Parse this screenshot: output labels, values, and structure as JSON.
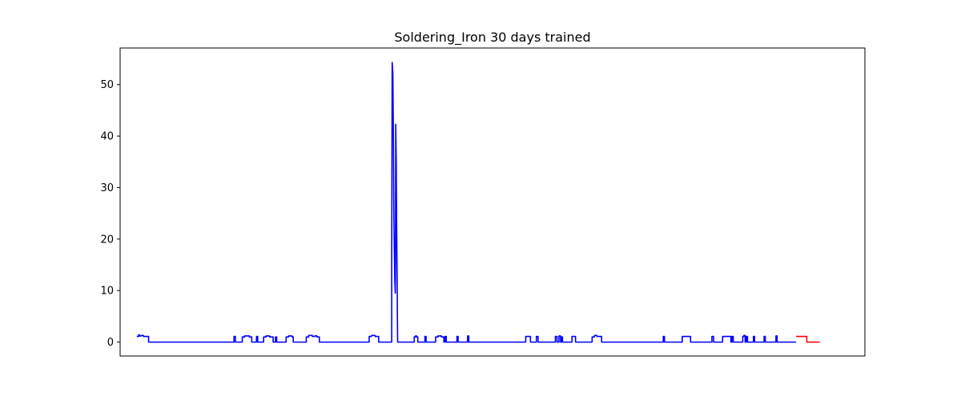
{
  "chart_data": {
    "type": "line",
    "title": "Soldering_Iron 30 days trained",
    "xlabel": "",
    "ylabel": "",
    "x_axis_labels_visible": false,
    "xlim": [
      -0.7,
      30.7
    ],
    "ylim": [
      -2.7,
      57.1
    ],
    "y_ticks": [
      0,
      10,
      20,
      30,
      40,
      50
    ],
    "grid": false,
    "series": [
      {
        "color": "#0000ff",
        "points": [
          [
            0,
            1.1
          ],
          [
            0.08,
            1.1
          ],
          [
            0.08,
            1.4
          ],
          [
            0.12,
            1.4
          ],
          [
            0.12,
            1.2
          ],
          [
            0.2,
            1.2
          ],
          [
            0.2,
            1.3
          ],
          [
            0.28,
            1.3
          ],
          [
            0.28,
            1.1
          ],
          [
            0.5,
            1.1
          ],
          [
            0.5,
            0
          ],
          [
            4.1,
            0
          ],
          [
            4.1,
            1.1
          ],
          [
            4.16,
            1.1
          ],
          [
            4.16,
            0
          ],
          [
            4.45,
            0
          ],
          [
            4.45,
            1.0
          ],
          [
            4.55,
            1.0
          ],
          [
            4.55,
            1.2
          ],
          [
            4.75,
            1.2
          ],
          [
            4.75,
            1.0
          ],
          [
            4.85,
            1.0
          ],
          [
            4.85,
            0
          ],
          [
            5.05,
            0
          ],
          [
            5.05,
            1.1
          ],
          [
            5.1,
            1.1
          ],
          [
            5.1,
            0
          ],
          [
            5.35,
            0
          ],
          [
            5.35,
            1.0
          ],
          [
            5.45,
            1.0
          ],
          [
            5.45,
            1.2
          ],
          [
            5.6,
            1.2
          ],
          [
            5.6,
            1.0
          ],
          [
            5.75,
            1.0
          ],
          [
            5.75,
            0
          ],
          [
            5.85,
            0
          ],
          [
            5.85,
            1.0
          ],
          [
            5.9,
            1.0
          ],
          [
            5.9,
            0
          ],
          [
            6.3,
            0
          ],
          [
            6.3,
            1.0
          ],
          [
            6.4,
            1.0
          ],
          [
            6.4,
            1.2
          ],
          [
            6.55,
            1.2
          ],
          [
            6.55,
            1.0
          ],
          [
            6.6,
            1.0
          ],
          [
            6.6,
            0
          ],
          [
            7.15,
            0
          ],
          [
            7.15,
            1.0
          ],
          [
            7.25,
            1.0
          ],
          [
            7.25,
            1.3
          ],
          [
            7.4,
            1.3
          ],
          [
            7.4,
            1.1
          ],
          [
            7.5,
            1.1
          ],
          [
            7.5,
            1.2
          ],
          [
            7.6,
            1.2
          ],
          [
            7.6,
            1.0
          ],
          [
            7.7,
            1.0
          ],
          [
            7.7,
            0
          ],
          [
            9.8,
            0
          ],
          [
            9.8,
            1.1
          ],
          [
            9.9,
            1.1
          ],
          [
            9.9,
            1.3
          ],
          [
            10.05,
            1.3
          ],
          [
            10.05,
            1.1
          ],
          [
            10.2,
            1.1
          ],
          [
            10.2,
            0
          ],
          [
            10.75,
            0
          ],
          [
            10.75,
            15
          ],
          [
            10.77,
            54.3
          ],
          [
            10.8,
            52
          ],
          [
            10.82,
            40
          ],
          [
            10.84,
            25
          ],
          [
            10.86,
            18
          ],
          [
            10.88,
            12
          ],
          [
            10.9,
            9.5
          ],
          [
            10.91,
            16
          ],
          [
            10.92,
            42.3
          ],
          [
            10.94,
            35
          ],
          [
            10.96,
            22
          ],
          [
            10.98,
            12
          ],
          [
            10.99,
            5
          ],
          [
            11.0,
            0
          ],
          [
            11.7,
            0
          ],
          [
            11.7,
            1.0
          ],
          [
            11.75,
            1.0
          ],
          [
            11.75,
            1.2
          ],
          [
            11.8,
            1.2
          ],
          [
            11.8,
            1.0
          ],
          [
            11.85,
            1.0
          ],
          [
            11.85,
            0
          ],
          [
            12.15,
            0
          ],
          [
            12.15,
            1.1
          ],
          [
            12.2,
            1.1
          ],
          [
            12.2,
            0
          ],
          [
            12.6,
            0
          ],
          [
            12.6,
            1.0
          ],
          [
            12.7,
            1.0
          ],
          [
            12.7,
            1.2
          ],
          [
            12.85,
            1.2
          ],
          [
            12.85,
            1.0
          ],
          [
            12.95,
            1.0
          ],
          [
            12.95,
            0
          ],
          [
            13.0,
            0
          ],
          [
            13.0,
            1.1
          ],
          [
            13.05,
            1.1
          ],
          [
            13.05,
            0
          ],
          [
            13.5,
            0
          ],
          [
            13.5,
            1.1
          ],
          [
            13.55,
            1.1
          ],
          [
            13.55,
            0
          ],
          [
            13.95,
            0
          ],
          [
            13.95,
            1.2
          ],
          [
            14.0,
            1.2
          ],
          [
            14.0,
            0
          ],
          [
            16.4,
            0
          ],
          [
            16.4,
            1.1
          ],
          [
            16.6,
            1.1
          ],
          [
            16.6,
            0
          ],
          [
            16.85,
            0
          ],
          [
            16.85,
            1.1
          ],
          [
            16.92,
            1.1
          ],
          [
            16.92,
            0
          ],
          [
            17.65,
            0
          ],
          [
            17.65,
            1.1
          ],
          [
            17.72,
            1.1
          ],
          [
            17.72,
            0
          ],
          [
            17.8,
            0
          ],
          [
            17.8,
            1.2
          ],
          [
            17.87,
            1.2
          ],
          [
            17.87,
            0
          ],
          [
            17.9,
            0
          ],
          [
            17.9,
            1.0
          ],
          [
            17.95,
            1.0
          ],
          [
            17.95,
            0
          ],
          [
            18.35,
            0
          ],
          [
            18.35,
            1.1
          ],
          [
            18.5,
            1.1
          ],
          [
            18.5,
            0
          ],
          [
            19.2,
            0
          ],
          [
            19.2,
            1.0
          ],
          [
            19.3,
            1.0
          ],
          [
            19.3,
            1.3
          ],
          [
            19.4,
            1.3
          ],
          [
            19.4,
            1.1
          ],
          [
            19.6,
            1.1
          ],
          [
            19.6,
            0
          ],
          [
            22.2,
            0
          ],
          [
            22.2,
            1.1
          ],
          [
            22.25,
            1.1
          ],
          [
            22.25,
            0
          ],
          [
            23.0,
            0
          ],
          [
            23.0,
            1.1
          ],
          [
            23.35,
            1.1
          ],
          [
            23.35,
            0
          ],
          [
            24.25,
            0
          ],
          [
            24.25,
            1.1
          ],
          [
            24.32,
            1.1
          ],
          [
            24.32,
            0
          ],
          [
            24.7,
            0
          ],
          [
            24.7,
            1.1
          ],
          [
            25.05,
            1.1
          ],
          [
            25.05,
            0
          ],
          [
            25.1,
            0
          ],
          [
            25.1,
            1.1
          ],
          [
            25.15,
            1.1
          ],
          [
            25.15,
            0
          ],
          [
            25.55,
            0
          ],
          [
            25.55,
            1.1
          ],
          [
            25.6,
            1.1
          ],
          [
            25.6,
            1.3
          ],
          [
            25.65,
            1.3
          ],
          [
            25.65,
            0
          ],
          [
            25.7,
            0
          ],
          [
            25.7,
            1.1
          ],
          [
            25.75,
            1.1
          ],
          [
            25.75,
            0
          ],
          [
            26.0,
            0
          ],
          [
            26.0,
            1.1
          ],
          [
            26.05,
            1.1
          ],
          [
            26.05,
            0
          ],
          [
            26.45,
            0
          ],
          [
            26.45,
            1.1
          ],
          [
            26.5,
            1.1
          ],
          [
            26.5,
            0
          ],
          [
            26.95,
            0
          ],
          [
            26.95,
            1.2
          ],
          [
            27.0,
            1.2
          ],
          [
            27.0,
            0
          ],
          [
            27.8,
            0
          ]
        ]
      },
      {
        "color": "#ff0000",
        "points": [
          [
            27.8,
            1.1
          ],
          [
            28.25,
            1.1
          ],
          [
            28.25,
            0
          ],
          [
            28.8,
            0
          ]
        ]
      }
    ]
  }
}
